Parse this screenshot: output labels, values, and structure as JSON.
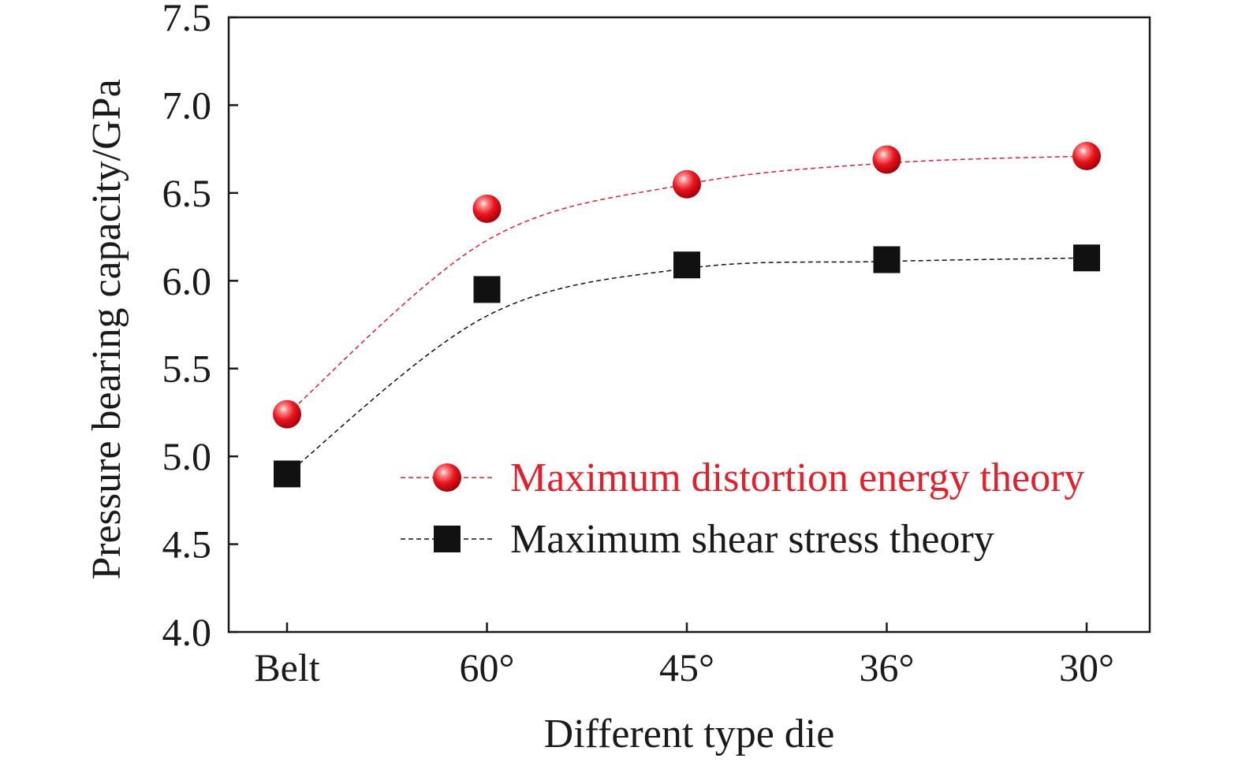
{
  "chart_data": {
    "type": "line",
    "categories": [
      "Belt",
      "60°",
      "45°",
      "36°",
      "30°"
    ],
    "xlabel": "Different type die",
    "ylabel": "Pressure bearing capacity/GPa",
    "ylim": [
      4.0,
      7.5
    ],
    "yticks": [
      "4.0",
      "4.5",
      "5.0",
      "5.5",
      "6.0",
      "6.5",
      "7.0",
      "7.5"
    ],
    "grid": false,
    "legend_position": "lower-right",
    "series": [
      {
        "name": "Maximum distortion energy theory",
        "marker": "sphere",
        "color": "#e0202a",
        "values": [
          5.24,
          6.41,
          6.55,
          6.69,
          6.71
        ],
        "fit": [
          5.24,
          6.23,
          6.55,
          6.67,
          6.71
        ]
      },
      {
        "name": "Maximum shear stress theory",
        "marker": "square",
        "color": "#111111",
        "values": [
          4.9,
          5.95,
          6.09,
          6.12,
          6.13
        ],
        "fit": [
          4.9,
          5.8,
          6.07,
          6.11,
          6.13
        ]
      }
    ]
  }
}
